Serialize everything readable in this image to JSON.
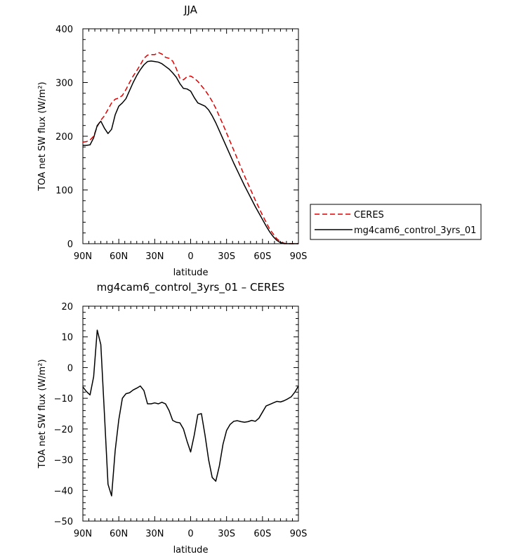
{
  "chart_data": [
    {
      "type": "line",
      "title": "JJA",
      "xlabel": "latitude",
      "ylabel": "TOA net SW flux (W/m²)",
      "xlim": [
        90,
        -90
      ],
      "ylim": [
        0,
        400
      ],
      "x_ticks": [
        90,
        60,
        30,
        0,
        -30,
        -60,
        -90
      ],
      "x_tick_labels": [
        "90N",
        "60N",
        "30N",
        "0",
        "30S",
        "60S",
        "90S"
      ],
      "y_ticks": [
        0,
        100,
        200,
        300,
        400
      ],
      "y_tick_labels": [
        "0",
        "100",
        "200",
        "300",
        "400"
      ],
      "legend": {
        "placement": "outside-right"
      },
      "series": [
        {
          "name": "CERES",
          "color": "#e00000",
          "dash": "dashed",
          "points": [
            [
              90,
              189
            ],
            [
              87,
              190
            ],
            [
              84,
              193
            ],
            [
              81,
              200
            ],
            [
              78,
              218
            ],
            [
              75,
              230
            ],
            [
              72,
              238
            ],
            [
              69,
              250
            ],
            [
              66,
              262
            ],
            [
              63,
              269
            ],
            [
              60,
              271
            ],
            [
              57,
              276
            ],
            [
              54,
              287
            ],
            [
              51,
              300
            ],
            [
              48,
              312
            ],
            [
              45,
              322
            ],
            [
              42,
              333
            ],
            [
              39,
              345
            ],
            [
              36,
              351
            ],
            [
              33,
              352
            ],
            [
              30,
              352
            ],
            [
              27,
              356
            ],
            [
              24,
              353
            ],
            [
              21,
              347
            ],
            [
              18,
              345
            ],
            [
              15,
              340
            ],
            [
              12,
              326
            ],
            [
              9,
              308
            ],
            [
              6,
              305
            ],
            [
              3,
              311
            ],
            [
              0,
              312
            ],
            [
              -3,
              308
            ],
            [
              -6,
              302
            ],
            [
              -9,
              294
            ],
            [
              -12,
              286
            ],
            [
              -15,
              276
            ],
            [
              -18,
              265
            ],
            [
              -21,
              252
            ],
            [
              -24,
              237
            ],
            [
              -27,
              222
            ],
            [
              -30,
              206
            ],
            [
              -33,
              190
            ],
            [
              -36,
              174
            ],
            [
              -39,
              158
            ],
            [
              -42,
              142
            ],
            [
              -45,
              126
            ],
            [
              -48,
              111
            ],
            [
              -51,
              96
            ],
            [
              -54,
              81
            ],
            [
              -57,
              67
            ],
            [
              -60,
              53
            ],
            [
              -63,
              40
            ],
            [
              -66,
              27
            ],
            [
              -69,
              18
            ],
            [
              -72,
              9
            ],
            [
              -75,
              4
            ],
            [
              -78,
              1
            ],
            [
              -81,
              0
            ],
            [
              -84,
              0
            ],
            [
              -87,
              0
            ],
            [
              -90,
              0
            ]
          ]
        },
        {
          "name": "mg4cam6_control_3yrs_01",
          "color": "#000000",
          "dash": "solid",
          "points": [
            [
              90,
              183
            ],
            [
              87,
              183
            ],
            [
              84,
              184
            ],
            [
              81,
              197
            ],
            [
              78,
              220
            ],
            [
              75,
              228
            ],
            [
              72,
              215
            ],
            [
              69,
              205
            ],
            [
              66,
              213
            ],
            [
              63,
              240
            ],
            [
              60,
              256
            ],
            [
              57,
              262
            ],
            [
              54,
              270
            ],
            [
              51,
              285
            ],
            [
              48,
              300
            ],
            [
              45,
              313
            ],
            [
              42,
              324
            ],
            [
              39,
              333
            ],
            [
              36,
              339
            ],
            [
              33,
              340
            ],
            [
              30,
              339
            ],
            [
              27,
              338
            ],
            [
              24,
              335
            ],
            [
              21,
              330
            ],
            [
              18,
              325
            ],
            [
              15,
              318
            ],
            [
              12,
              310
            ],
            [
              9,
              298
            ],
            [
              6,
              289
            ],
            [
              3,
              288
            ],
            [
              0,
              284
            ],
            [
              -3,
              272
            ],
            [
              -6,
              262
            ],
            [
              -9,
              259
            ],
            [
              -12,
              256
            ],
            [
              -15,
              249
            ],
            [
              -18,
              238
            ],
            [
              -21,
              225
            ],
            [
              -24,
              210
            ],
            [
              -27,
              195
            ],
            [
              -30,
              180
            ],
            [
              -33,
              165
            ],
            [
              -36,
              150
            ],
            [
              -39,
              136
            ],
            [
              -42,
              122
            ],
            [
              -45,
              108
            ],
            [
              -48,
              95
            ],
            [
              -51,
              82
            ],
            [
              -54,
              69
            ],
            [
              -57,
              57
            ],
            [
              -60,
              45
            ],
            [
              -63,
              33
            ],
            [
              -66,
              22
            ],
            [
              -69,
              13
            ],
            [
              -72,
              6
            ],
            [
              -75,
              2
            ],
            [
              -78,
              0
            ],
            [
              -81,
              0
            ],
            [
              -84,
              0
            ],
            [
              -87,
              0
            ],
            [
              -90,
              0
            ]
          ]
        }
      ]
    },
    {
      "type": "line",
      "title": "mg4cam6_control_3yrs_01 – CERES",
      "xlabel": "latitude",
      "ylabel": "TOA net SW flux (W/m²)",
      "xlim": [
        90,
        -90
      ],
      "ylim": [
        -50,
        20
      ],
      "x_ticks": [
        90,
        60,
        30,
        0,
        -30,
        -60,
        -90
      ],
      "x_tick_labels": [
        "90N",
        "60N",
        "30N",
        "0",
        "30S",
        "60S",
        "90S"
      ],
      "y_ticks": [
        -50,
        -40,
        -30,
        -20,
        -10,
        0,
        10,
        20
      ],
      "y_tick_labels": [
        "−50",
        "−40",
        "−30",
        "−20",
        "−10",
        "0",
        "10",
        "20"
      ],
      "series": [
        {
          "color": "#000000",
          "dash": "solid",
          "points": [
            [
              90,
              -6.3
            ],
            [
              87,
              -7.8
            ],
            [
              84,
              -8.9
            ],
            [
              81,
              -3
            ],
            [
              78,
              12.2
            ],
            [
              75,
              7.5
            ],
            [
              72,
              -15
            ],
            [
              69,
              -38
            ],
            [
              66,
              -41.8
            ],
            [
              63,
              -27
            ],
            [
              60,
              -17
            ],
            [
              57,
              -10
            ],
            [
              54,
              -8.5
            ],
            [
              51,
              -8.2
            ],
            [
              48,
              -7.3
            ],
            [
              45,
              -6.7
            ],
            [
              42,
              -6
            ],
            [
              39,
              -7.5
            ],
            [
              36,
              -11.8
            ],
            [
              33,
              -11.8
            ],
            [
              30,
              -11.5
            ],
            [
              27,
              -11.8
            ],
            [
              24,
              -11.3
            ],
            [
              21,
              -11.8
            ],
            [
              18,
              -14
            ],
            [
              15,
              -17.2
            ],
            [
              12,
              -17.8
            ],
            [
              9,
              -18
            ],
            [
              6,
              -20
            ],
            [
              3,
              -24
            ],
            [
              0,
              -27.5
            ],
            [
              -3,
              -22
            ],
            [
              -6,
              -15.3
            ],
            [
              -9,
              -15
            ],
            [
              -12,
              -22
            ],
            [
              -15,
              -30
            ],
            [
              -18,
              -35.8
            ],
            [
              -21,
              -37
            ],
            [
              -24,
              -32
            ],
            [
              -27,
              -25
            ],
            [
              -30,
              -20.5
            ],
            [
              -33,
              -18.5
            ],
            [
              -36,
              -17.5
            ],
            [
              -39,
              -17.3
            ],
            [
              -42,
              -17.6
            ],
            [
              -45,
              -17.8
            ],
            [
              -48,
              -17.6
            ],
            [
              -51,
              -17.2
            ],
            [
              -54,
              -17.5
            ],
            [
              -57,
              -16.5
            ],
            [
              -60,
              -14.5
            ],
            [
              -63,
              -12.5
            ],
            [
              -66,
              -12
            ],
            [
              -69,
              -11.5
            ],
            [
              -72,
              -11
            ],
            [
              -75,
              -11.2
            ],
            [
              -78,
              -10.8
            ],
            [
              -81,
              -10.2
            ],
            [
              -84,
              -9.5
            ],
            [
              -87,
              -8
            ],
            [
              -90,
              -6
            ]
          ]
        }
      ]
    }
  ]
}
